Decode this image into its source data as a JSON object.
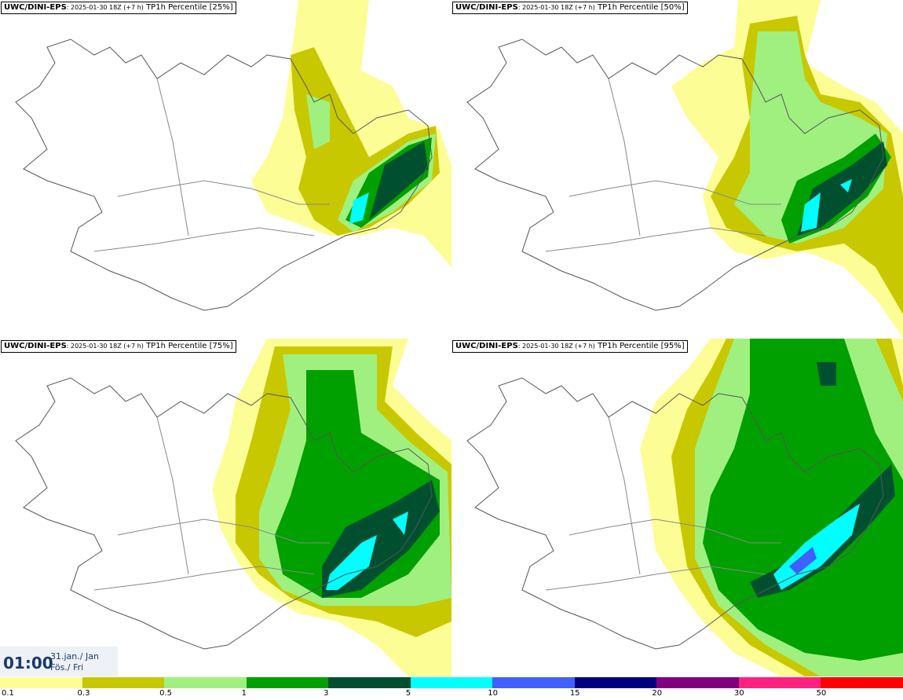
{
  "panels": [
    {
      "model": "UWC/DINI-EPS",
      "run": ": 2025-01-30 18Z (+7 h)",
      "product": " TP1h Percentile [25%]"
    },
    {
      "model": "UWC/DINI-EPS",
      "run": ": 2025-01-30 18Z (+7 h)",
      "product": " TP1h Percentile [50%]"
    },
    {
      "model": "UWC/DINI-EPS",
      "run": ": 2025-01-30 18Z (+7 h)",
      "product": " TP1h Percentile [75%]"
    },
    {
      "model": "UWC/DINI-EPS",
      "run": ": 2025-01-30 18Z (+7 h)",
      "product": " TP1h Percentile [95%]"
    }
  ],
  "time": {
    "clock": "01:00",
    "date_line1": "31.jan./ Jan",
    "date_line2": "Fös./ Fri"
  },
  "legend": {
    "colors": [
      "#fdfd96",
      "#c8c800",
      "#a0f080",
      "#00a000",
      "#005030",
      "#00ffff",
      "#4060ff",
      "#000080",
      "#800080",
      "#ff2080",
      "#ff0000"
    ],
    "labels": [
      "0.1",
      "0.3",
      "0.5",
      "1",
      "3",
      "5",
      "10",
      "15",
      "20",
      "30",
      "50"
    ]
  },
  "colors": {
    "very_light": "#fdfd96",
    "light": "#c8c800",
    "mid_light": "#a0f080",
    "mid": "#00a000",
    "dark": "#005030",
    "cyan": "#00ffff",
    "blue": "#4060ff"
  }
}
